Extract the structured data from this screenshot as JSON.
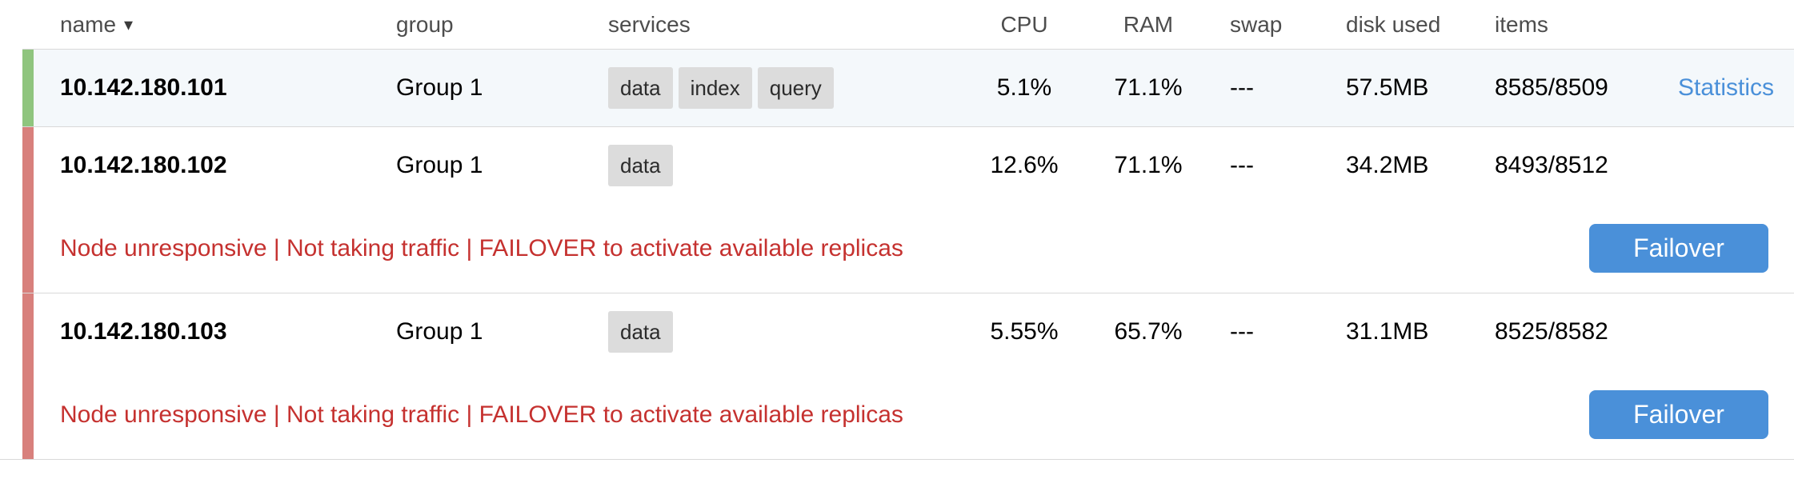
{
  "colors": {
    "healthy_strip": "#8fc57e",
    "down_strip": "#d8807c",
    "healthy_row_bg": "#f4f8fb",
    "alert_text": "#c5312f",
    "action_blue": "#4a90d9",
    "badge_bg": "#dcdcdc",
    "border_gray": "#d9d9d9"
  },
  "header": {
    "name_label": "name",
    "sort_caret": "▾",
    "group_label": "group",
    "services_label": "services",
    "cpu_label": "CPU",
    "ram_label": "RAM",
    "swap_label": "swap",
    "disk_used_label": "disk used",
    "items_label": "items"
  },
  "rows": [
    {
      "name": "10.142.180.101",
      "group": "Group 1",
      "services": [
        "data",
        "index",
        "query"
      ],
      "cpu": "5.1%",
      "ram": "71.1%",
      "swap": "---",
      "disk_used": "57.5MB",
      "items": "8585/8509",
      "action_label": "Statistics",
      "status": "healthy"
    },
    {
      "name": "10.142.180.102",
      "group": "Group 1",
      "services": [
        "data"
      ],
      "cpu": "12.6%",
      "ram": "71.1%",
      "swap": "---",
      "disk_used": "34.2MB",
      "items": "8493/8512",
      "status": "down",
      "alert_message": "Node unresponsive | Not taking traffic | FAILOVER to activate available replicas",
      "failover_label": "Failover"
    },
    {
      "name": "10.142.180.103",
      "group": "Group 1",
      "services": [
        "data"
      ],
      "cpu": "5.55%",
      "ram": "65.7%",
      "swap": "---",
      "disk_used": "31.1MB",
      "items": "8525/8582",
      "status": "down",
      "alert_message": "Node unresponsive | Not taking traffic | FAILOVER to activate available replicas",
      "failover_label": "Failover"
    }
  ]
}
